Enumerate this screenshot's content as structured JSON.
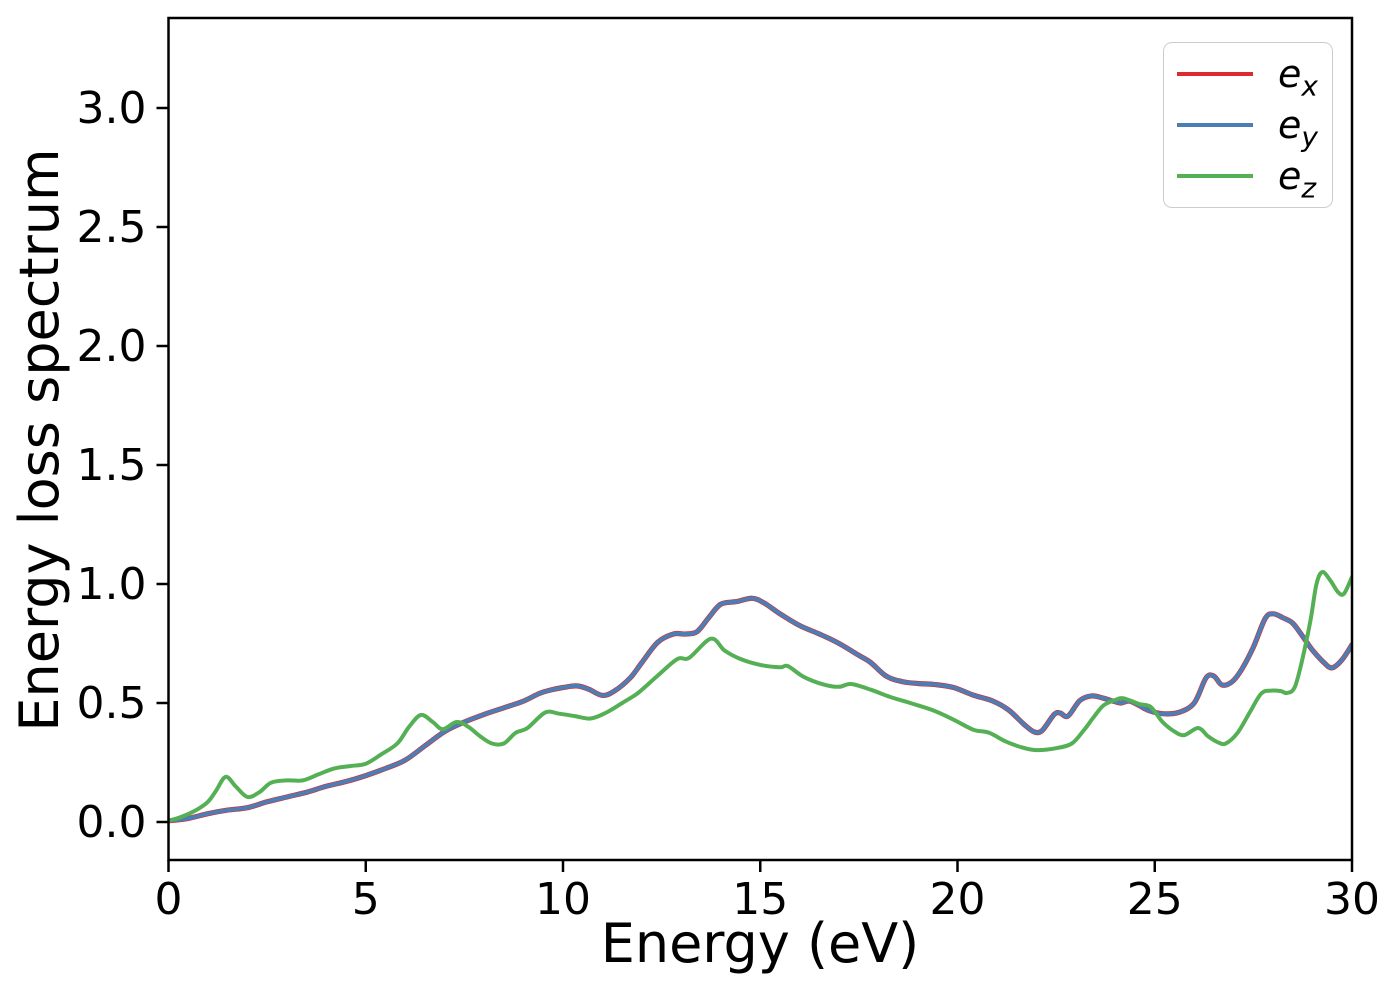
{
  "figure": {
    "background": "#ffffff"
  },
  "colors": {
    "ex": "#dc2a2e",
    "ey": "#4a7eb5",
    "ez": "#55b055",
    "spine": "#000000",
    "legend_border": "#cccccc"
  },
  "legend": {
    "items": [
      {
        "base": "e",
        "sub": "x",
        "color": "#dc2a2e"
      },
      {
        "base": "e",
        "sub": "y",
        "color": "#4a7eb5"
      },
      {
        "base": "e",
        "sub": "z",
        "color": "#55b055"
      }
    ]
  },
  "chart_data": {
    "type": "line",
    "title": "",
    "xlabel": "Energy (eV)",
    "ylabel": "Energy loss spectrum",
    "xlim": [
      0,
      30
    ],
    "ylim": [
      -0.16,
      3.38
    ],
    "x_ticks": [
      0,
      5,
      10,
      15,
      20,
      25,
      30
    ],
    "x_tick_labels": [
      "0",
      "5",
      "10",
      "15",
      "20",
      "25",
      "30"
    ],
    "y_ticks": [
      0.0,
      0.5,
      1.0,
      1.5,
      2.0,
      2.5,
      3.0
    ],
    "y_tick_labels": [
      "0.0",
      "0.5",
      "1.0",
      "1.5",
      "2.0",
      "2.5",
      "3.0"
    ],
    "grid": false,
    "legend_position": "upper right",
    "series": [
      {
        "name": "e_x",
        "color": "#dc2a2e",
        "points": [
          [
            0,
            0.005
          ],
          [
            0.5,
            0.015
          ],
          [
            1,
            0.035
          ],
          [
            1.5,
            0.05
          ],
          [
            2,
            0.06
          ],
          [
            2.5,
            0.085
          ],
          [
            3,
            0.105
          ],
          [
            3.5,
            0.125
          ],
          [
            4,
            0.15
          ],
          [
            4.5,
            0.17
          ],
          [
            5,
            0.195
          ],
          [
            5.5,
            0.225
          ],
          [
            6,
            0.26
          ],
          [
            6.5,
            0.32
          ],
          [
            7,
            0.38
          ],
          [
            7.5,
            0.42
          ],
          [
            8,
            0.452
          ],
          [
            8.5,
            0.48
          ],
          [
            9,
            0.508
          ],
          [
            9.4,
            0.54
          ],
          [
            9.7,
            0.555
          ],
          [
            10,
            0.565
          ],
          [
            10.35,
            0.572
          ],
          [
            10.65,
            0.558
          ],
          [
            11,
            0.532
          ],
          [
            11.3,
            0.55
          ],
          [
            11.7,
            0.605
          ],
          [
            12,
            0.67
          ],
          [
            12.4,
            0.755
          ],
          [
            12.8,
            0.79
          ],
          [
            13.1,
            0.79
          ],
          [
            13.4,
            0.8
          ],
          [
            13.7,
            0.86
          ],
          [
            14,
            0.915
          ],
          [
            14.4,
            0.926
          ],
          [
            14.8,
            0.94
          ],
          [
            15.1,
            0.92
          ],
          [
            15.5,
            0.875
          ],
          [
            16,
            0.825
          ],
          [
            16.5,
            0.79
          ],
          [
            17,
            0.75
          ],
          [
            17.5,
            0.7
          ],
          [
            17.8,
            0.67
          ],
          [
            18.2,
            0.612
          ],
          [
            18.6,
            0.59
          ],
          [
            19,
            0.582
          ],
          [
            19.4,
            0.578
          ],
          [
            19.9,
            0.565
          ],
          [
            20.4,
            0.533
          ],
          [
            20.9,
            0.508
          ],
          [
            21.3,
            0.47
          ],
          [
            21.7,
            0.408
          ],
          [
            21.95,
            0.378
          ],
          [
            22.15,
            0.385
          ],
          [
            22.45,
            0.452
          ],
          [
            22.6,
            0.458
          ],
          [
            22.8,
            0.445
          ],
          [
            23.1,
            0.51
          ],
          [
            23.4,
            0.53
          ],
          [
            23.7,
            0.52
          ],
          [
            24,
            0.505
          ],
          [
            24.15,
            0.5
          ],
          [
            24.35,
            0.508
          ],
          [
            24.6,
            0.49
          ],
          [
            24.85,
            0.468
          ],
          [
            25.2,
            0.455
          ],
          [
            25.6,
            0.46
          ],
          [
            26,
            0.5
          ],
          [
            26.3,
            0.605
          ],
          [
            26.5,
            0.613
          ],
          [
            26.7,
            0.576
          ],
          [
            26.95,
            0.588
          ],
          [
            27.2,
            0.64
          ],
          [
            27.5,
            0.735
          ],
          [
            27.8,
            0.855
          ],
          [
            28,
            0.875
          ],
          [
            28.25,
            0.858
          ],
          [
            28.5,
            0.835
          ],
          [
            28.75,
            0.78
          ],
          [
            29,
            0.722
          ],
          [
            29.3,
            0.668
          ],
          [
            29.5,
            0.648
          ],
          [
            29.75,
            0.682
          ],
          [
            30,
            0.745
          ]
        ]
      },
      {
        "name": "e_y",
        "color": "#4a7eb5",
        "points": [
          [
            0,
            0.005
          ],
          [
            0.5,
            0.015
          ],
          [
            1,
            0.035
          ],
          [
            1.5,
            0.05
          ],
          [
            2,
            0.06
          ],
          [
            2.5,
            0.085
          ],
          [
            3,
            0.105
          ],
          [
            3.5,
            0.125
          ],
          [
            4,
            0.15
          ],
          [
            4.5,
            0.17
          ],
          [
            5,
            0.195
          ],
          [
            5.5,
            0.225
          ],
          [
            6,
            0.26
          ],
          [
            6.5,
            0.32
          ],
          [
            7,
            0.38
          ],
          [
            7.5,
            0.42
          ],
          [
            8,
            0.452
          ],
          [
            8.5,
            0.48
          ],
          [
            9,
            0.508
          ],
          [
            9.4,
            0.54
          ],
          [
            9.7,
            0.555
          ],
          [
            10,
            0.565
          ],
          [
            10.35,
            0.572
          ],
          [
            10.65,
            0.558
          ],
          [
            11,
            0.532
          ],
          [
            11.3,
            0.55
          ],
          [
            11.7,
            0.605
          ],
          [
            12,
            0.67
          ],
          [
            12.4,
            0.755
          ],
          [
            12.8,
            0.79
          ],
          [
            13.1,
            0.79
          ],
          [
            13.4,
            0.8
          ],
          [
            13.7,
            0.86
          ],
          [
            14,
            0.915
          ],
          [
            14.4,
            0.926
          ],
          [
            14.8,
            0.94
          ],
          [
            15.1,
            0.92
          ],
          [
            15.5,
            0.875
          ],
          [
            16,
            0.825
          ],
          [
            16.5,
            0.79
          ],
          [
            17,
            0.75
          ],
          [
            17.5,
            0.7
          ],
          [
            17.8,
            0.67
          ],
          [
            18.2,
            0.612
          ],
          [
            18.6,
            0.59
          ],
          [
            19,
            0.582
          ],
          [
            19.4,
            0.578
          ],
          [
            19.9,
            0.565
          ],
          [
            20.4,
            0.533
          ],
          [
            20.9,
            0.508
          ],
          [
            21.3,
            0.47
          ],
          [
            21.7,
            0.408
          ],
          [
            21.95,
            0.378
          ],
          [
            22.15,
            0.385
          ],
          [
            22.45,
            0.452
          ],
          [
            22.6,
            0.458
          ],
          [
            22.8,
            0.445
          ],
          [
            23.1,
            0.51
          ],
          [
            23.4,
            0.53
          ],
          [
            23.7,
            0.52
          ],
          [
            24,
            0.505
          ],
          [
            24.15,
            0.5
          ],
          [
            24.35,
            0.508
          ],
          [
            24.6,
            0.49
          ],
          [
            24.85,
            0.468
          ],
          [
            25.2,
            0.455
          ],
          [
            25.6,
            0.46
          ],
          [
            26,
            0.5
          ],
          [
            26.3,
            0.605
          ],
          [
            26.5,
            0.613
          ],
          [
            26.7,
            0.576
          ],
          [
            26.95,
            0.588
          ],
          [
            27.2,
            0.64
          ],
          [
            27.5,
            0.735
          ],
          [
            27.8,
            0.855
          ],
          [
            28,
            0.875
          ],
          [
            28.25,
            0.858
          ],
          [
            28.5,
            0.835
          ],
          [
            28.75,
            0.78
          ],
          [
            29,
            0.722
          ],
          [
            29.3,
            0.668
          ],
          [
            29.5,
            0.648
          ],
          [
            29.75,
            0.682
          ],
          [
            30,
            0.745
          ]
        ]
      },
      {
        "name": "e_z",
        "color": "#55b055",
        "points": [
          [
            0,
            0.005
          ],
          [
            0.3,
            0.02
          ],
          [
            0.7,
            0.05
          ],
          [
            1,
            0.085
          ],
          [
            1.2,
            0.13
          ],
          [
            1.45,
            0.19
          ],
          [
            1.7,
            0.15
          ],
          [
            2,
            0.105
          ],
          [
            2.3,
            0.125
          ],
          [
            2.6,
            0.165
          ],
          [
            3,
            0.175
          ],
          [
            3.4,
            0.175
          ],
          [
            3.8,
            0.2
          ],
          [
            4.2,
            0.225
          ],
          [
            4.6,
            0.235
          ],
          [
            5,
            0.245
          ],
          [
            5.4,
            0.285
          ],
          [
            5.8,
            0.33
          ],
          [
            6.1,
            0.4
          ],
          [
            6.4,
            0.45
          ],
          [
            6.7,
            0.42
          ],
          [
            6.95,
            0.39
          ],
          [
            7.3,
            0.42
          ],
          [
            7.6,
            0.4
          ],
          [
            7.9,
            0.36
          ],
          [
            8.2,
            0.33
          ],
          [
            8.5,
            0.33
          ],
          [
            8.8,
            0.375
          ],
          [
            9.1,
            0.395
          ],
          [
            9.55,
            0.46
          ],
          [
            9.9,
            0.455
          ],
          [
            10.3,
            0.445
          ],
          [
            10.7,
            0.435
          ],
          [
            11.1,
            0.46
          ],
          [
            11.5,
            0.5
          ],
          [
            11.9,
            0.542
          ],
          [
            12.4,
            0.615
          ],
          [
            12.9,
            0.685
          ],
          [
            13.2,
            0.69
          ],
          [
            13.75,
            0.77
          ],
          [
            14.1,
            0.72
          ],
          [
            14.5,
            0.685
          ],
          [
            15,
            0.66
          ],
          [
            15.5,
            0.65
          ],
          [
            15.7,
            0.655
          ],
          [
            16.1,
            0.61
          ],
          [
            16.6,
            0.578
          ],
          [
            17,
            0.568
          ],
          [
            17.3,
            0.58
          ],
          [
            17.8,
            0.556
          ],
          [
            18.3,
            0.525
          ],
          [
            18.8,
            0.5
          ],
          [
            19.4,
            0.468
          ],
          [
            19.9,
            0.43
          ],
          [
            20.4,
            0.388
          ],
          [
            20.8,
            0.375
          ],
          [
            21.2,
            0.34
          ],
          [
            21.6,
            0.315
          ],
          [
            22,
            0.302
          ],
          [
            22.5,
            0.31
          ],
          [
            22.9,
            0.33
          ],
          [
            23.2,
            0.385
          ],
          [
            23.45,
            0.44
          ],
          [
            23.7,
            0.49
          ],
          [
            24,
            0.513
          ],
          [
            24.2,
            0.52
          ],
          [
            24.6,
            0.496
          ],
          [
            24.9,
            0.483
          ],
          [
            25.2,
            0.42
          ],
          [
            25.5,
            0.38
          ],
          [
            25.75,
            0.365
          ],
          [
            26.1,
            0.395
          ],
          [
            26.35,
            0.36
          ],
          [
            26.6,
            0.335
          ],
          [
            26.8,
            0.33
          ],
          [
            27.1,
            0.375
          ],
          [
            27.4,
            0.458
          ],
          [
            27.7,
            0.54
          ],
          [
            27.95,
            0.552
          ],
          [
            28.2,
            0.55
          ],
          [
            28.35,
            0.542
          ],
          [
            28.55,
            0.567
          ],
          [
            28.75,
            0.69
          ],
          [
            28.95,
            0.85
          ],
          [
            29.1,
            1.0
          ],
          [
            29.25,
            1.05
          ],
          [
            29.45,
            1.015
          ],
          [
            29.65,
            0.965
          ],
          [
            29.8,
            0.96
          ],
          [
            30,
            1.03
          ]
        ]
      }
    ]
  }
}
